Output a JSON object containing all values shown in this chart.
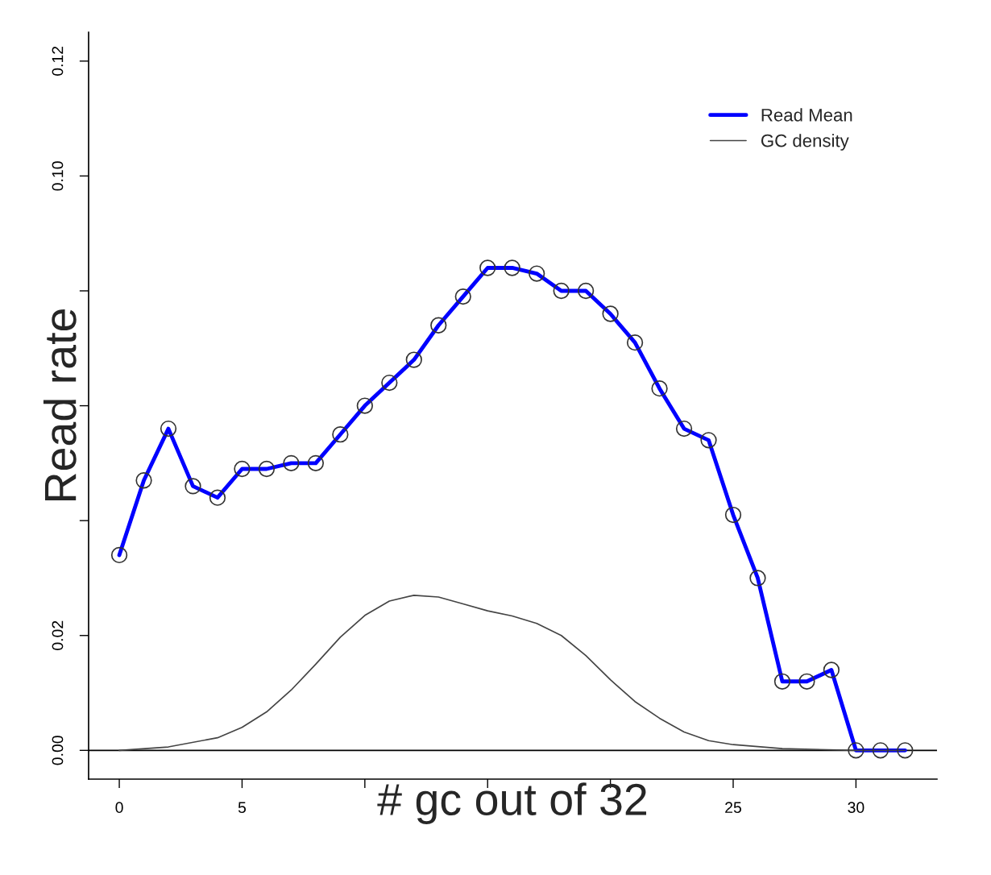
{
  "chart_data": {
    "type": "line",
    "xlabel": "# gc out of 32",
    "ylabel": "Read rate",
    "xlim": [
      -1.25,
      33.3
    ],
    "ylim": [
      -0.005,
      0.125
    ],
    "xticks": [
      0,
      5,
      {
        "value": 10,
        "label": null
      },
      {
        "value": 15,
        "label": null
      },
      {
        "value": 20,
        "label": null
      },
      25,
      30
    ],
    "yticks": [
      {
        "value": 0,
        "label": "0.00"
      },
      {
        "value": 0.02,
        "label": "0.02"
      },
      {
        "value": 0.04,
        "label": null
      },
      {
        "value": 0.06,
        "label": null
      },
      {
        "value": 0.08,
        "label": null
      },
      {
        "value": 0.1,
        "label": "0.10"
      },
      {
        "value": 0.12,
        "label": "0.12"
      }
    ],
    "ref_lines": [
      {
        "axis": "y",
        "value": 0,
        "color": "#000000"
      }
    ],
    "legend": "top right",
    "grid": false,
    "series": [
      {
        "name": "Read Mean",
        "color": "#0000ff",
        "marker": "circle",
        "x": [
          0,
          1,
          2,
          3,
          4,
          5,
          6,
          7,
          8,
          9,
          10,
          11,
          12,
          13,
          14,
          15,
          16,
          17,
          18,
          19,
          20,
          21,
          22,
          23,
          24,
          25,
          26,
          27,
          28,
          29,
          30,
          31,
          32
        ],
        "values": [
          0.034,
          0.047,
          0.056,
          0.046,
          0.044,
          0.049,
          0.049,
          0.05,
          0.05,
          0.055,
          0.06,
          0.064,
          0.068,
          0.074,
          0.079,
          0.084,
          0.084,
          0.083,
          0.08,
          0.08,
          0.076,
          0.071,
          0.063,
          0.056,
          0.054,
          0.041,
          0.03,
          0.012,
          0.012,
          0.014,
          0,
          0,
          0
        ]
      },
      {
        "name": "GC density",
        "color": "#444444",
        "marker": "none",
        "x": [
          0,
          2,
          4,
          5,
          6,
          7,
          8,
          9,
          10,
          11,
          12,
          13,
          14,
          15,
          16,
          17,
          18,
          19,
          20,
          21,
          22,
          23,
          24,
          25,
          27,
          30,
          32
        ],
        "values": [
          0,
          0.0006,
          0.0022,
          0.004,
          0.0067,
          0.0105,
          0.015,
          0.0197,
          0.0235,
          0.026,
          0.027,
          0.0267,
          0.0255,
          0.0243,
          0.0234,
          0.0221,
          0.02,
          0.0165,
          0.0123,
          0.0085,
          0.0056,
          0.0032,
          0.0017,
          0.001,
          0.0003,
          0,
          0
        ]
      }
    ]
  }
}
